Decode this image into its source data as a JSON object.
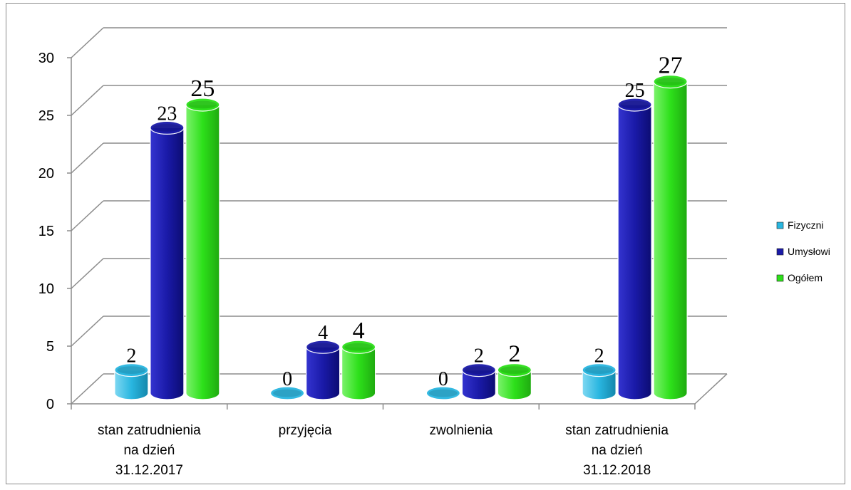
{
  "chart_data": {
    "type": "bar",
    "title": "",
    "xlabel": "",
    "ylabel": "",
    "ylim": [
      0,
      30
    ],
    "y_ticks": [
      "0",
      "5",
      "10",
      "15",
      "20",
      "25",
      "30"
    ],
    "grid": true,
    "legend_position": "right",
    "categories": [
      [
        "stan zatrudnienia",
        "na dzień",
        "31.12.2017"
      ],
      [
        "przyjęcia"
      ],
      [
        "zwolnienia"
      ],
      [
        "stan zatrudnienia",
        "na dzień",
        "31.12.2018"
      ]
    ],
    "series": [
      {
        "name": "Fizyczni",
        "color": "#29b6e0",
        "values": [
          2,
          0,
          0,
          2
        ],
        "labels": [
          "2",
          "0",
          "0",
          "2"
        ]
      },
      {
        "name": "Umysłowi",
        "color": "#1a1aa8",
        "values": [
          23,
          4,
          2,
          25
        ],
        "labels": [
          "23",
          "4",
          "2",
          "25"
        ]
      },
      {
        "name": "Ogółem",
        "color": "#2de01a",
        "values": [
          25,
          4,
          2,
          27
        ],
        "labels": [
          "25",
          "4",
          "2",
          "27"
        ]
      }
    ]
  }
}
